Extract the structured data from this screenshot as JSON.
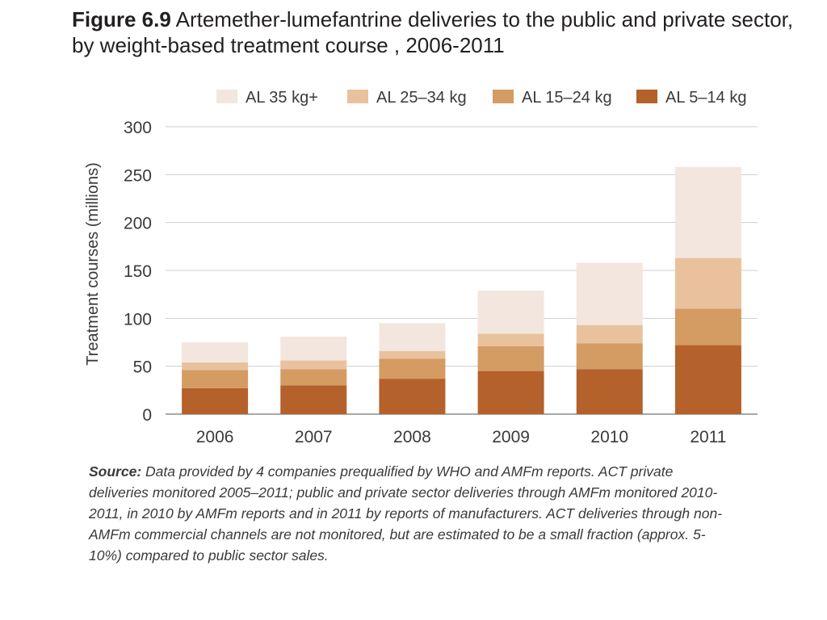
{
  "figure": {
    "label": "Figure 6.9",
    "title": "Artemether-lumefantrine deliveries to the public and private sector, by weight-based treatment course , 2006-2011"
  },
  "source": {
    "label": "Source:",
    "text": "Data provided by 4 companies prequalified by WHO and AMFm reports. ACT private deliveries monitored 2005–2011; public and private sector deliveries through AMFm monitored 2010-2011, in 2010 by AMFm reports and in 2011 by reports of manufacturers. ACT deliveries through non-AMFm commercial channels are not monitored, but are estimated to be a small fraction (approx. 5-10%) compared to public sector sales."
  },
  "chart_data": {
    "type": "bar",
    "stacked": true,
    "title": "Artemether-lumefantrine deliveries to the public and private sector, by weight-based treatment course , 2006-2011",
    "xlabel": "",
    "ylabel": "Treatment courses (millions)",
    "ylim": [
      0,
      300
    ],
    "yticks": [
      0,
      50,
      100,
      150,
      200,
      250,
      300
    ],
    "grid": true,
    "legend_position": "top-right",
    "categories": [
      "2006",
      "2007",
      "2008",
      "2009",
      "2010",
      "2011"
    ],
    "series": [
      {
        "name": "AL 5–14 kg",
        "color": "#b5612b",
        "values": [
          27,
          30,
          37,
          45,
          47,
          72
        ]
      },
      {
        "name": "AL 15–24 kg",
        "color": "#d49b63",
        "values": [
          19,
          17,
          21,
          26,
          27,
          38
        ]
      },
      {
        "name": "AL 25–34 kg",
        "color": "#e9c29d",
        "values": [
          8,
          9,
          8,
          13,
          19,
          53
        ]
      },
      {
        "name": "AL 35 kg+",
        "color": "#f3e6df",
        "values": [
          21,
          25,
          29,
          45,
          65,
          95
        ]
      }
    ],
    "legend_order": [
      "AL 35 kg+",
      "AL 25–34 kg",
      "AL 15–24 kg",
      "AL 5–14 kg"
    ]
  }
}
